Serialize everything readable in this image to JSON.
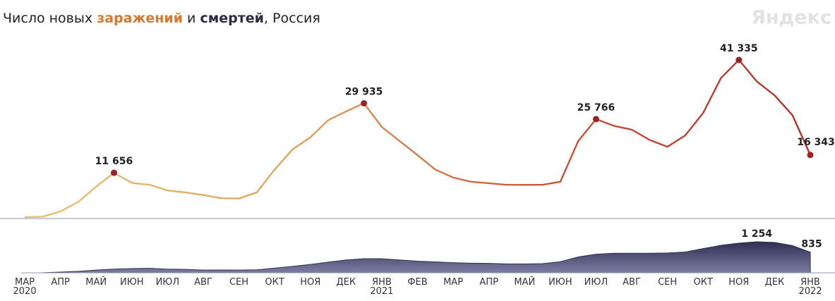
{
  "chart_data": [
    {
      "type": "line",
      "title": [
        "Число новых ",
        "заражений",
        " и ",
        "смертей",
        ", Россия"
      ],
      "title_colors": [
        "#222222",
        "#d9782d",
        "#222222",
        "#2b2b45",
        "#222222"
      ],
      "logo": "Яндекс",
      "color": [
        "#e8c27a",
        "#e3a35c",
        "#c8553a",
        "#b5302a"
      ],
      "values": [
        0,
        100,
        1500,
        4000,
        8000,
        11656,
        9000,
        8500,
        7000,
        6500,
        5800,
        5000,
        4900,
        6500,
        12500,
        17800,
        21000,
        25500,
        27800,
        29935,
        23700,
        20000,
        16300,
        12500,
        10400,
        9300,
        8900,
        8500,
        8500,
        8500,
        9300,
        20000,
        25766,
        24000,
        23000,
        20300,
        18500,
        21500,
        27400,
        36600,
        41335,
        35700,
        32000,
        26800,
        16343
      ],
      "value_labels": [
        null,
        null,
        null,
        null,
        null,
        "11 656",
        null,
        null,
        null,
        null,
        null,
        null,
        null,
        null,
        null,
        null,
        null,
        null,
        null,
        "29 935",
        null,
        null,
        null,
        null,
        null,
        null,
        null,
        null,
        null,
        null,
        null,
        null,
        "25 766",
        null,
        null,
        null,
        null,
        null,
        null,
        null,
        "41 335",
        null,
        null,
        null,
        "16 343"
      ],
      "marker_color": "#9b2226"
    },
    {
      "type": "area",
      "color": [
        "#2f2f52",
        "#7c7ca3"
      ],
      "categories": [
        "МАР 2020",
        null,
        "АПР",
        null,
        "МАЙ",
        null,
        "ИЮН",
        null,
        "ИЮЛ",
        null,
        "АВГ",
        null,
        "СЕН",
        null,
        "ОКТ",
        null,
        "НОЯ",
        null,
        "ДЕК",
        null,
        "ЯНВ 2021",
        null,
        "ФЕВ",
        null,
        "МАР",
        null,
        "АПР",
        null,
        "МАЙ",
        null,
        "ИЮН",
        null,
        "ИЮЛ",
        null,
        "АВГ",
        null,
        "СЕН",
        null,
        "ОКТ",
        null,
        "НОЯ",
        null,
        "ДЕК",
        null,
        "ЯНВ 2022"
      ],
      "values": [
        0,
        5,
        30,
        60,
        110,
        150,
        170,
        180,
        150,
        140,
        110,
        115,
        110,
        120,
        190,
        260,
        340,
        430,
        520,
        570,
        570,
        520,
        470,
        440,
        410,
        390,
        380,
        360,
        360,
        370,
        450,
        640,
        750,
        790,
        790,
        790,
        800,
        840,
        980,
        1110,
        1200,
        1254,
        1230,
        1100,
        835
      ],
      "value_labels": [
        null,
        null,
        null,
        null,
        null,
        null,
        null,
        null,
        null,
        null,
        null,
        null,
        null,
        null,
        null,
        null,
        null,
        null,
        null,
        null,
        null,
        null,
        null,
        null,
        null,
        null,
        null,
        null,
        null,
        null,
        null,
        null,
        null,
        null,
        null,
        null,
        null,
        null,
        null,
        null,
        null,
        "1 254",
        null,
        null,
        "835"
      ]
    }
  ]
}
